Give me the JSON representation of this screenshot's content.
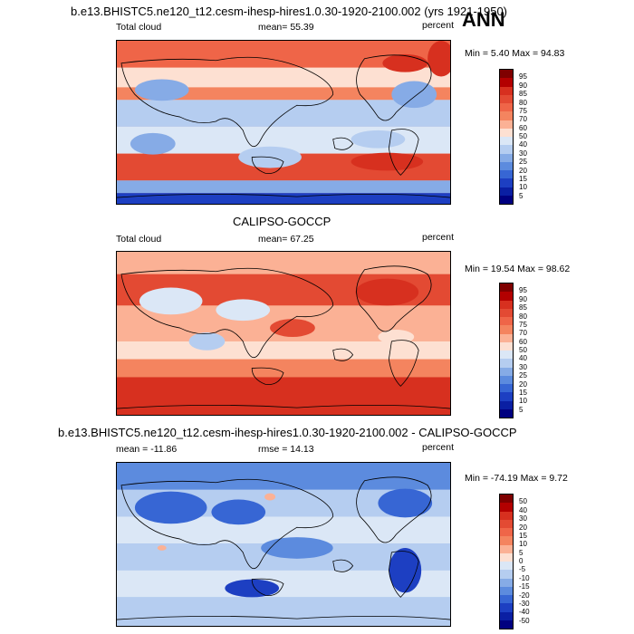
{
  "season_label": "ANN",
  "panels": [
    {
      "title": "b.e13.BHISTC5.ne120_t12.cesm-ihesp-hires1.0.30-1920-2100.002 (yrs 1921-1950)",
      "left_label": "Total cloud",
      "center_label": "mean=  55.39",
      "right_label": "percent",
      "minmax": "Min =   5.40 Max =  94.83",
      "colorbar_ticks": [
        "95",
        "90",
        "85",
        "80",
        "75",
        "70",
        "60",
        "50",
        "40",
        "30",
        "25",
        "20",
        "15",
        "10",
        "5"
      ],
      "colorbar_colors": [
        "#7f0000",
        "#b30000",
        "#d7301f",
        "#e34a33",
        "#ef6548",
        "#f4845f",
        "#fbb195",
        "#fde0d2",
        "#dbe7f6",
        "#b5cdf0",
        "#86abe6",
        "#5c8bde",
        "#3766d4",
        "#1d3fc2",
        "#0a1fa3",
        "#000080"
      ]
    },
    {
      "title": "CALIPSO-GOCCP",
      "left_label": "Total cloud",
      "center_label": "mean=  67.25",
      "right_label": "percent",
      "minmax": "Min =  19.54 Max =  98.62",
      "colorbar_ticks": [
        "95",
        "90",
        "85",
        "80",
        "75",
        "70",
        "60",
        "50",
        "40",
        "30",
        "25",
        "20",
        "15",
        "10",
        "5"
      ],
      "colorbar_colors": [
        "#7f0000",
        "#b30000",
        "#d7301f",
        "#e34a33",
        "#ef6548",
        "#f4845f",
        "#fbb195",
        "#fde0d2",
        "#dbe7f6",
        "#b5cdf0",
        "#86abe6",
        "#5c8bde",
        "#3766d4",
        "#1d3fc2",
        "#0a1fa3",
        "#000080"
      ]
    },
    {
      "title": "b.e13.BHISTC5.ne120_t12.cesm-ihesp-hires1.0.30-1920-2100.002 - CALIPSO-GOCCP",
      "left_label": "mean = -11.86",
      "center_label": "rmse =  14.13",
      "right_label": "percent",
      "minmax": "Min = -74.19 Max =   9.72",
      "colorbar_ticks": [
        "50",
        "40",
        "30",
        "20",
        "15",
        "10",
        "5",
        "0",
        "-5",
        "-10",
        "-15",
        "-20",
        "-30",
        "-40",
        "-50"
      ],
      "colorbar_colors": [
        "#7f0000",
        "#b30000",
        "#d7301f",
        "#e34a33",
        "#ef6548",
        "#f4845f",
        "#fbb195",
        "#fde0d2",
        "#dbe7f6",
        "#b5cdf0",
        "#86abe6",
        "#5c8bde",
        "#3766d4",
        "#1d3fc2",
        "#0a1fa3",
        "#000080"
      ]
    }
  ]
}
